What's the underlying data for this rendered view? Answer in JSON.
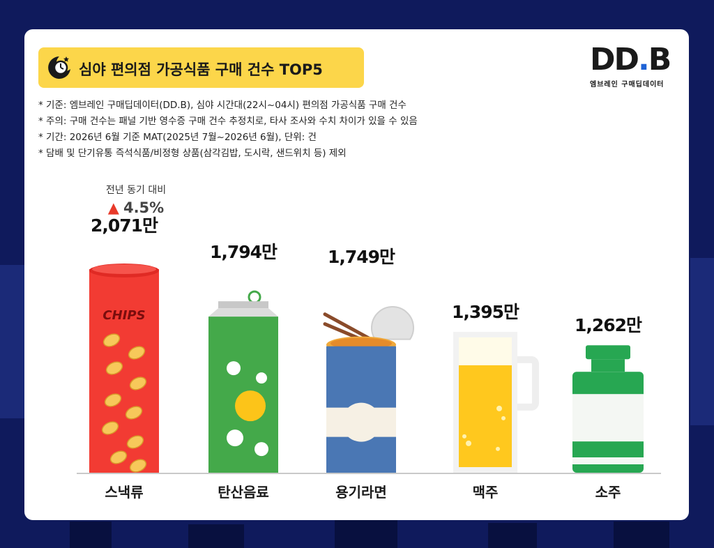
{
  "title": "심야 편의점 가공식품 구매 건수 TOP5",
  "logo": {
    "main_left": "DD",
    "main_dot": ".",
    "main_right": "B",
    "subtitle": "엠브레인 구매딥데이터"
  },
  "notes": [
    "* 기준: 엠브레인 구매딥데이터(DD.B), 심야 시간대(22시~04시) 편의점 가공식품 구매 건수",
    "* 주의: 구매 건수는 패널 기반 영수증 구매 건수 추정치로, 타사 조사와 수치 차이가 있을 수 있음",
    "* 기간: 2026년 6월 기준 MAT(2025년 7월~2026년 6월), 단위: 건",
    "* 담배 및 단기유통 즉석식품/비정형 상품(삼각김밥, 도시락, 샌드위치 등) 제외"
  ],
  "yoy": {
    "label": "전년 동기 대비",
    "arrow": "▲",
    "value": "4.5%"
  },
  "chips_label": "CHIPS",
  "colors": {
    "accent": "#fcd64a",
    "chips": "#f23b33",
    "soda": "#44a94a",
    "ramen": "#4a77b4",
    "beer": "#ffc81e",
    "soju": "#27a752",
    "up": "#e83a2a"
  },
  "chart_data": {
    "type": "bar",
    "title": "심야 편의점 가공식품 구매 건수 TOP5",
    "unit": "만",
    "categories": [
      "스낵류",
      "탄산음료",
      "용기라면",
      "맥주",
      "소주"
    ],
    "values": [
      2071,
      1794,
      1749,
      1395,
      1262
    ],
    "value_labels": [
      "2,071만",
      "1,794만",
      "1,749만",
      "1,395만",
      "1,262만"
    ],
    "ylim": [
      0,
      2300
    ],
    "grid": false,
    "annotations": [
      {
        "category": "스낵류",
        "text": "전년 동기 대비 ▲ 4.5%"
      }
    ]
  }
}
